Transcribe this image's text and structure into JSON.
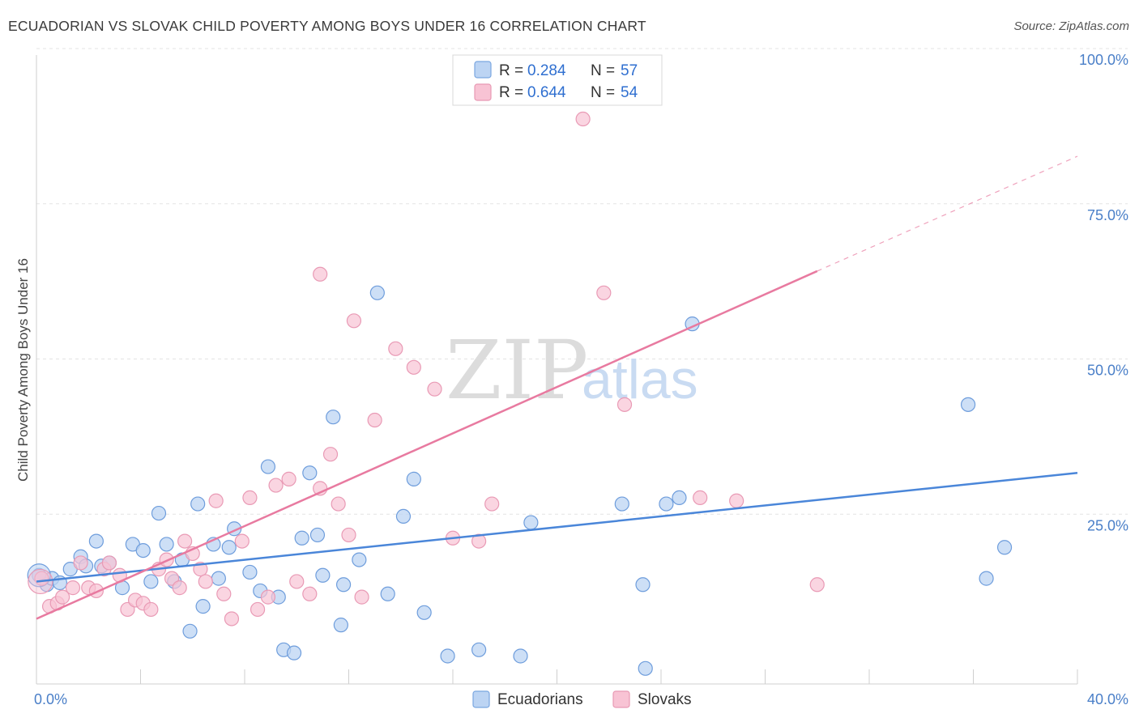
{
  "title": "ECUADORIAN VS SLOVAK CHILD POVERTY AMONG BOYS UNDER 16 CORRELATION CHART",
  "source": "Source: ZipAtlas.com",
  "watermark": {
    "zip": "ZIP",
    "atlas": "atlas"
  },
  "legend_top": {
    "rows": [
      {
        "r_label": "R =",
        "r_value": "0.284",
        "n_label": "N =",
        "n_value": "57"
      },
      {
        "r_label": "R =",
        "r_value": "0.644",
        "n_label": "N =",
        "n_value": "54"
      }
    ]
  },
  "chart_data": {
    "type": "scatter",
    "title": "ECUADORIAN VS SLOVAK CHILD POVERTY AMONG BOYS UNDER 16 CORRELATION CHART",
    "xlabel": "",
    "ylabel": "Child Poverty Among Boys Under 16",
    "xlim": [
      0,
      40
    ],
    "ylim": [
      0,
      100
    ],
    "x_tick_labels": [
      "0.0%",
      "40.0%"
    ],
    "y_ticks": [
      25,
      50,
      75,
      100
    ],
    "y_tick_labels": [
      "25.0%",
      "50.0%",
      "75.0%",
      "100.0%"
    ],
    "grid": true,
    "legend_position": "bottom-center",
    "colors": {
      "ecuadorians": "#4a86d9",
      "slovaks": "#e87aa0",
      "ecu_fill": "#bcd4f3",
      "slo_fill": "#f8c3d4"
    },
    "series": [
      {
        "name": "Ecuadorians",
        "trend": {
          "x0": 0,
          "y0": 16.5,
          "x1": 40,
          "y1": 34
        },
        "points": [
          [
            0.1,
            17.5
          ],
          [
            0.4,
            16
          ],
          [
            0.6,
            17
          ],
          [
            0.9,
            16.3
          ],
          [
            1.3,
            18.5
          ],
          [
            1.7,
            20.5
          ],
          [
            1.9,
            19
          ],
          [
            2.3,
            23
          ],
          [
            2.5,
            19
          ],
          [
            2.8,
            19.5
          ],
          [
            3.3,
            15.5
          ],
          [
            3.7,
            22.5
          ],
          [
            4.1,
            21.5
          ],
          [
            4.4,
            16.5
          ],
          [
            4.7,
            27.5
          ],
          [
            5.0,
            22.5
          ],
          [
            5.3,
            16.5
          ],
          [
            5.6,
            20
          ],
          [
            5.9,
            8.5
          ],
          [
            6.2,
            29
          ],
          [
            6.4,
            12.5
          ],
          [
            6.8,
            22.5
          ],
          [
            7.0,
            17
          ],
          [
            7.4,
            22
          ],
          [
            7.6,
            25
          ],
          [
            8.2,
            18
          ],
          [
            8.6,
            15
          ],
          [
            8.9,
            35
          ],
          [
            9.3,
            14
          ],
          [
            9.5,
            5.5
          ],
          [
            9.9,
            5
          ],
          [
            10.2,
            23.5
          ],
          [
            10.5,
            34
          ],
          [
            10.8,
            24
          ],
          [
            11.0,
            17.5
          ],
          [
            11.4,
            43
          ],
          [
            11.7,
            9.5
          ],
          [
            11.8,
            16
          ],
          [
            12.4,
            20
          ],
          [
            13.1,
            63
          ],
          [
            13.5,
            14.5
          ],
          [
            14.1,
            27
          ],
          [
            14.5,
            33
          ],
          [
            14.9,
            11.5
          ],
          [
            15.8,
            4.5
          ],
          [
            17.0,
            5.5
          ],
          [
            18.6,
            4.5
          ],
          [
            19.0,
            26
          ],
          [
            22.5,
            29
          ],
          [
            23.3,
            16
          ],
          [
            23.4,
            2.5
          ],
          [
            24.2,
            29
          ],
          [
            24.7,
            30
          ],
          [
            25.2,
            58
          ],
          [
            35.8,
            45
          ],
          [
            36.5,
            17
          ],
          [
            37.2,
            22
          ]
        ]
      },
      {
        "name": "Slovaks",
        "trend": {
          "x0": 0,
          "y0": 10.5,
          "x1": 30,
          "y1": 66.5
        },
        "trend_ext": {
          "x0": 30,
          "y0": 66.5,
          "x1": 40,
          "y1": 85
        },
        "points": [
          [
            0.2,
            17
          ],
          [
            0.5,
            12.5
          ],
          [
            0.8,
            13
          ],
          [
            1.4,
            15.5
          ],
          [
            1.7,
            19.5
          ],
          [
            2.0,
            15.5
          ],
          [
            2.3,
            15
          ],
          [
            2.6,
            18.5
          ],
          [
            2.8,
            19.5
          ],
          [
            3.2,
            17.5
          ],
          [
            3.5,
            12
          ],
          [
            3.8,
            13.5
          ],
          [
            4.1,
            13
          ],
          [
            4.4,
            12
          ],
          [
            4.7,
            18.5
          ],
          [
            5.0,
            20
          ],
          [
            5.2,
            17
          ],
          [
            5.5,
            15.5
          ],
          [
            5.7,
            23
          ],
          [
            6.0,
            21
          ],
          [
            6.3,
            18.5
          ],
          [
            6.5,
            16.5
          ],
          [
            6.9,
            29.5
          ],
          [
            7.2,
            14.5
          ],
          [
            7.5,
            10.5
          ],
          [
            7.9,
            23
          ],
          [
            8.2,
            30
          ],
          [
            8.5,
            12
          ],
          [
            8.9,
            14
          ],
          [
            9.2,
            32
          ],
          [
            9.7,
            33
          ],
          [
            10.0,
            16.5
          ],
          [
            10.5,
            14.5
          ],
          [
            10.9,
            31.5
          ],
          [
            11.3,
            37
          ],
          [
            11.6,
            29
          ],
          [
            12.0,
            24
          ],
          [
            12.5,
            14
          ],
          [
            13.0,
            42.5
          ],
          [
            10.9,
            66
          ],
          [
            12.2,
            58.5
          ],
          [
            13.8,
            54
          ],
          [
            14.5,
            51
          ],
          [
            15.3,
            47.5
          ],
          [
            16.0,
            23.5
          ],
          [
            17.0,
            23
          ],
          [
            17.5,
            29
          ],
          [
            21.0,
            91
          ],
          [
            21.8,
            63
          ],
          [
            22.6,
            45
          ],
          [
            25.5,
            30
          ],
          [
            26.9,
            29.5
          ],
          [
            1.0,
            14
          ],
          [
            30.0,
            16
          ]
        ]
      }
    ]
  },
  "legend_bottom": [
    {
      "label": "Ecuadorians"
    },
    {
      "label": "Slovaks"
    }
  ]
}
